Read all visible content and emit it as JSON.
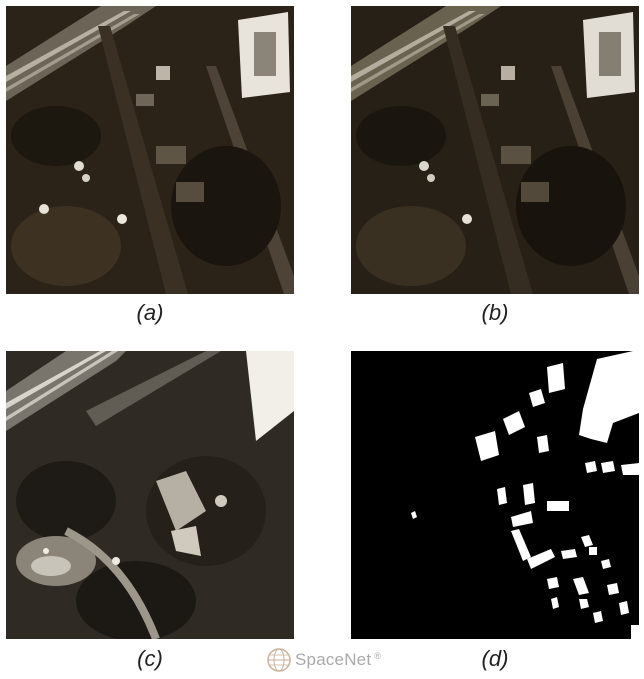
{
  "figure": {
    "panels": [
      {
        "id": "a",
        "caption": "(a)",
        "description_kind": "aerial-rgb"
      },
      {
        "id": "b",
        "caption": "(b)",
        "description_kind": "aerial-rgb-variant"
      },
      {
        "id": "c",
        "caption": "(c)",
        "description_kind": "aerial-off-nadir"
      },
      {
        "id": "d",
        "caption": "(d)",
        "description_kind": "building-mask"
      }
    ],
    "watermark": {
      "text": "SpaceNet",
      "mark": "®"
    }
  },
  "colors": {
    "mask_bg": "#000000",
    "mask_fg": "#ffffff",
    "caption": "#222222",
    "logo": "#aaaaaa"
  }
}
